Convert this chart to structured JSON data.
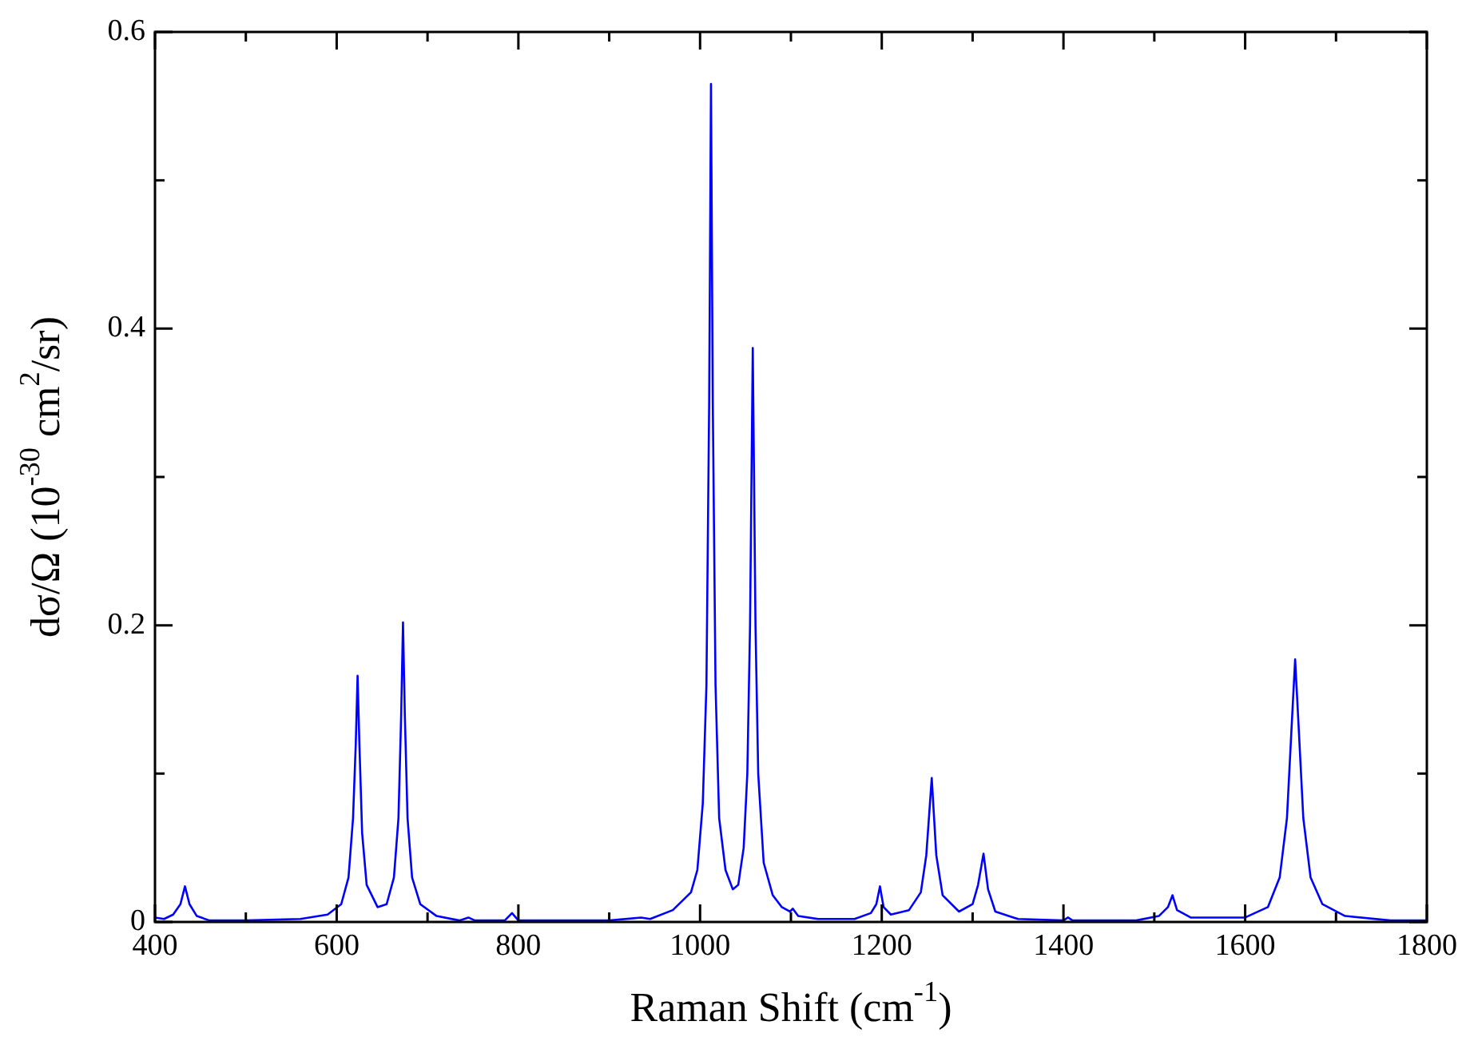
{
  "chart_data": {
    "type": "line",
    "xlabel": "Raman Shift (cm$^{-1}$)",
    "ylabel": "dσ/Ω (10$^{-30}$ cm$^{2}$/sr)",
    "xlim": [
      400,
      1800
    ],
    "xticks": [
      400,
      {
        "value": 500,
        "label": null
      },
      600,
      {
        "value": 700,
        "label": null
      },
      800,
      {
        "value": 900,
        "label": null
      },
      1000,
      {
        "value": 1100,
        "label": null
      },
      1200,
      {
        "value": 1300,
        "label": null
      },
      1400,
      {
        "value": 1500,
        "label": null
      },
      1600,
      {
        "value": 1700,
        "label": null
      },
      1800
    ],
    "ylim": [
      0,
      0.6
    ],
    "yticks": [
      0,
      {
        "value": 0.1,
        "label": null
      },
      0.2,
      {
        "value": 0.3,
        "label": null
      },
      0.4,
      {
        "value": 0.5,
        "label": null
      },
      0.6
    ],
    "grid": false,
    "legend": false,
    "marker": "none",
    "line_style": "solid",
    "series": [
      {
        "color": "#0000ff",
        "x": [
          400,
          410,
          420,
          428,
          433,
          438,
          446,
          460,
          500,
          560,
          590,
          605,
          613,
          618,
          621,
          623,
          625,
          628,
          633,
          645,
          655,
          663,
          668,
          671,
          673,
          675,
          678,
          683,
          692,
          710,
          735,
          745,
          752,
          785,
          793,
          800,
          850,
          900,
          935,
          945,
          970,
          990,
          997,
          1003,
          1007,
          1010,
          1012,
          1014,
          1017,
          1021,
          1028,
          1036,
          1042,
          1048,
          1052,
          1055,
          1058,
          1061,
          1064,
          1070,
          1080,
          1090,
          1096,
          1099,
          1102,
          1108,
          1130,
          1170,
          1188,
          1194,
          1198,
          1202,
          1210,
          1230,
          1243,
          1249,
          1255,
          1260,
          1267,
          1285,
          1300,
          1306,
          1312,
          1317,
          1325,
          1350,
          1400,
          1405,
          1410,
          1480,
          1505,
          1515,
          1520,
          1525,
          1540,
          1600,
          1625,
          1638,
          1646,
          1651,
          1655,
          1659,
          1664,
          1672,
          1685,
          1710,
          1760,
          1800
        ],
        "values": [
          0.003,
          0.002,
          0.005,
          0.012,
          0.024,
          0.012,
          0.004,
          0.001,
          0.001,
          0.002,
          0.005,
          0.012,
          0.03,
          0.07,
          0.12,
          0.166,
          0.12,
          0.06,
          0.025,
          0.01,
          0.012,
          0.03,
          0.07,
          0.14,
          0.202,
          0.14,
          0.07,
          0.03,
          0.012,
          0.004,
          0.001,
          0.003,
          0.001,
          0.001,
          0.006,
          0.001,
          0.001,
          0.001,
          0.003,
          0.002,
          0.008,
          0.02,
          0.035,
          0.08,
          0.16,
          0.35,
          0.565,
          0.35,
          0.16,
          0.07,
          0.035,
          0.022,
          0.025,
          0.05,
          0.1,
          0.2,
          0.387,
          0.2,
          0.1,
          0.04,
          0.018,
          0.01,
          0.008,
          0.007,
          0.009,
          0.004,
          0.002,
          0.002,
          0.006,
          0.012,
          0.024,
          0.01,
          0.005,
          0.008,
          0.02,
          0.045,
          0.097,
          0.045,
          0.018,
          0.007,
          0.012,
          0.025,
          0.046,
          0.022,
          0.007,
          0.002,
          0.001,
          0.003,
          0.001,
          0.001,
          0.004,
          0.01,
          0.018,
          0.008,
          0.003,
          0.003,
          0.01,
          0.03,
          0.07,
          0.13,
          0.177,
          0.13,
          0.07,
          0.03,
          0.012,
          0.004,
          0.001,
          0.001
        ]
      }
    ]
  }
}
